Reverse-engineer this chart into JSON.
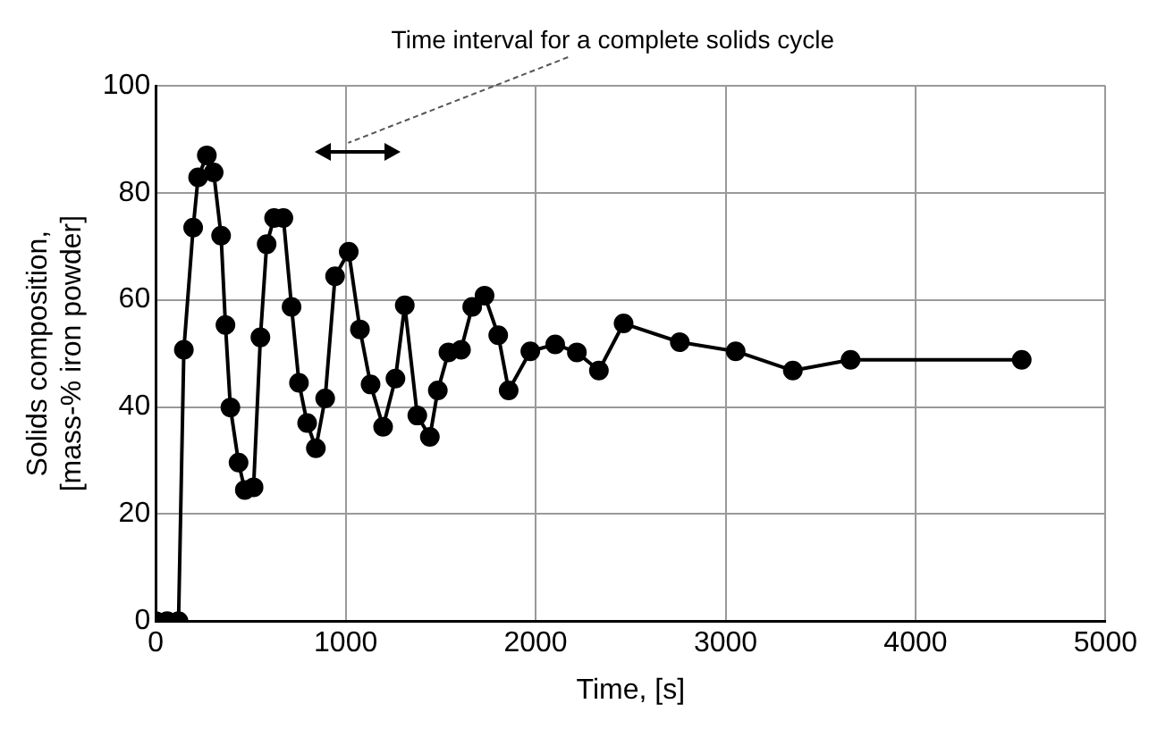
{
  "chart_data": {
    "type": "line",
    "xlabel": "Time, [s]",
    "ylabel": "Solids composition,\n[mass-% iron powder]",
    "x": [
      0,
      60,
      120,
      148,
      197,
      223,
      269,
      305,
      344,
      367,
      393,
      436,
      469,
      515,
      551,
      584,
      623,
      672,
      715,
      754,
      797,
      843,
      892,
      944,
      1016,
      1075,
      1131,
      1197,
      1262,
      1311,
      1377,
      1443,
      1485,
      1541,
      1607,
      1666,
      1731,
      1803,
      1858,
      1972,
      2103,
      2217,
      2333,
      2463,
      2759,
      3053,
      3354,
      3658,
      4559
    ],
    "series": [
      {
        "color": "#000000",
        "values": [
          0,
          0,
          0,
          50.7,
          73.5,
          82.9,
          87,
          83.8,
          72,
          55.3,
          39.9,
          29.6,
          24.5,
          25,
          53,
          70.4,
          75.3,
          75.3,
          58.7,
          44.5,
          37,
          32.3,
          41.6,
          64.4,
          69,
          54.5,
          44.2,
          36.3,
          45.3,
          59,
          38.4,
          34.4,
          43.1,
          50.2,
          50.7,
          58.7,
          60.8,
          53.4,
          43.1,
          50.4,
          51.7,
          50.2,
          46.8,
          55.6,
          52.1,
          50.4,
          46.8,
          48.8,
          48.8
        ]
      }
    ],
    "xlim": [
      0,
      5000
    ],
    "xticks": [
      0,
      1000,
      2000,
      3000,
      4000,
      5000
    ],
    "ylim": [
      0,
      100
    ],
    "yticks": [
      0,
      20,
      40,
      60,
      80,
      100
    ],
    "grid": true,
    "marker": "circle",
    "line_style": "solid",
    "legend": false,
    "annotations": [
      "Time interval for a complete solids cycle"
    ]
  }
}
